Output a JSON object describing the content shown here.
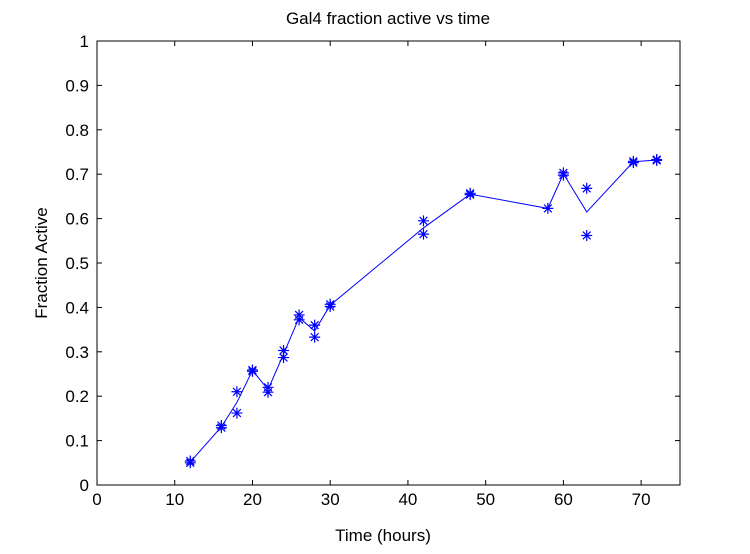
{
  "chart_data": {
    "type": "line",
    "title": "Gal4 fraction active vs time",
    "xlabel": "Time (hours)",
    "ylabel": "Fraction Active",
    "xlim": [
      0,
      75
    ],
    "ylim": [
      0,
      1
    ],
    "xticks": [
      0,
      10,
      20,
      30,
      40,
      50,
      60,
      70
    ],
    "yticks": [
      0,
      0.1,
      0.2,
      0.3,
      0.4,
      0.5,
      0.6,
      0.7,
      0.8,
      0.9,
      1
    ],
    "xtick_labels": [
      "0",
      "10",
      "20",
      "30",
      "40",
      "50",
      "60",
      "70"
    ],
    "ytick_labels": [
      "0",
      "0.1",
      "0.2",
      "0.3",
      "0.4",
      "0.5",
      "0.6",
      "0.7",
      "0.8",
      "0.9",
      "1"
    ],
    "grid": false,
    "color": "#0000ff",
    "line": {
      "x": [
        12,
        16,
        18,
        20,
        22,
        24,
        26,
        28,
        30,
        42,
        48,
        58,
        60,
        63,
        69,
        72
      ],
      "y": [
        0.052,
        0.131,
        0.186,
        0.258,
        0.215,
        0.295,
        0.377,
        0.347,
        0.405,
        0.579,
        0.655,
        0.623,
        0.701,
        0.615,
        0.728,
        0.732
      ]
    },
    "markers": {
      "x": [
        12,
        12,
        16,
        16,
        18,
        18,
        20,
        20,
        22,
        22,
        24,
        24,
        26,
        26,
        28,
        28,
        30,
        30,
        42,
        42,
        48,
        48,
        58,
        60,
        60,
        63,
        63,
        69,
        69,
        72,
        72
      ],
      "y": [
        0.05,
        0.054,
        0.129,
        0.134,
        0.162,
        0.21,
        0.256,
        0.259,
        0.209,
        0.22,
        0.287,
        0.303,
        0.372,
        0.383,
        0.333,
        0.36,
        0.402,
        0.407,
        0.565,
        0.595,
        0.654,
        0.657,
        0.623,
        0.698,
        0.703,
        0.562,
        0.668,
        0.726,
        0.729,
        0.731,
        0.733
      ]
    }
  }
}
